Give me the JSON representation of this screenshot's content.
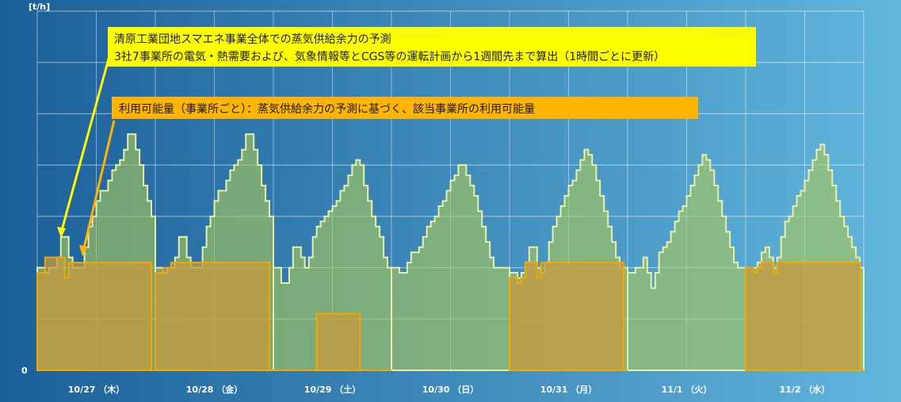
{
  "chart_data": {
    "type": "area",
    "y_unit_label": "[t/h]",
    "y_zero_label": "0",
    "x_tick_labels": [
      "10/27 （木）",
      "10/28 （金）",
      "10/29 （土）",
      "10/30 （日）",
      "10/31 （月）",
      "11/1 （火）",
      "11/2 （水）"
    ],
    "grid": true,
    "series": [
      {
        "name": "",
        "color": "#a8c85a",
        "values": [
          [
            2.0,
            2.0,
            1.9,
            2.0,
            2.0,
            2.2,
            2.6,
            2.6,
            2.2,
            2.0,
            2.0,
            2.0,
            2.4,
            2.8,
            3.0,
            3.3,
            3.5,
            3.5,
            3.7,
            3.9,
            4.0,
            4.1,
            4.3,
            4.6,
            4.6,
            4.3,
            4.0,
            3.6,
            3.3,
            3.0
          ],
          [
            2.0,
            2.0,
            1.9,
            2.0,
            2.0,
            2.2,
            2.6,
            2.6,
            2.2,
            2.0,
            2.0,
            2.0,
            2.4,
            2.8,
            3.0,
            3.3,
            3.5,
            3.5,
            3.7,
            3.9,
            4.0,
            4.1,
            4.3,
            4.6,
            4.6,
            4.3,
            4.0,
            3.6,
            3.3,
            3.0
          ],
          [
            2.0,
            2.0,
            1.7,
            1.7,
            2.0,
            2.4,
            2.4,
            2.2,
            2.0,
            2.2,
            2.6,
            2.8,
            2.9,
            3.0,
            3.1,
            3.2,
            3.3,
            3.5,
            3.6,
            3.8,
            4.0,
            4.1,
            4.0,
            3.6,
            3.3,
            3.0,
            2.8,
            2.6,
            2.2,
            2.0
          ],
          [
            2.0,
            2.0,
            1.9,
            1.9,
            2.1,
            2.3,
            2.3,
            2.4,
            2.6,
            2.8,
            2.9,
            3.0,
            3.2,
            3.3,
            3.5,
            3.7,
            3.8,
            4.0,
            4.0,
            3.8,
            3.6,
            3.4,
            3.1,
            2.8,
            2.5,
            2.2,
            2.0,
            2.0,
            2.0,
            2.0
          ],
          [
            1.9,
            1.9,
            1.8,
            1.9,
            2.1,
            2.4,
            2.4,
            2.0,
            1.9,
            2.1,
            2.5,
            2.8,
            3.0,
            3.2,
            3.4,
            3.6,
            3.7,
            3.9,
            4.1,
            4.3,
            4.2,
            4.0,
            3.7,
            3.4,
            3.1,
            2.8,
            2.5,
            2.2,
            2.0,
            2.0
          ],
          [
            1.9,
            1.9,
            2.0,
            2.0,
            2.2,
            1.9,
            1.6,
            1.9,
            2.3,
            2.4,
            2.5,
            2.7,
            2.9,
            3.1,
            3.2,
            3.4,
            3.6,
            3.8,
            4.0,
            4.2,
            4.1,
            3.9,
            3.6,
            3.3,
            3.0,
            2.7,
            2.4,
            2.1,
            2.0,
            2.0
          ],
          [
            2.0,
            2.0,
            2.0,
            2.1,
            2.3,
            2.4,
            2.2,
            2.0,
            2.2,
            2.6,
            2.9,
            3.0,
            3.2,
            3.4,
            3.5,
            3.7,
            3.9,
            4.1,
            4.3,
            4.4,
            4.2,
            3.9,
            3.6,
            3.3,
            3.0,
            2.8,
            2.6,
            2.4,
            2.2,
            2.0
          ]
        ]
      },
      {
        "name": "",
        "color": "#d4a23a",
        "values": [
          [
            1.9,
            1.9,
            2.2,
            2.2,
            2.2,
            2.2,
            2.2,
            1.8,
            2.1,
            2.1,
            2.1,
            2.1,
            2.1,
            2.1,
            2.1,
            2.1,
            2.1,
            2.1,
            2.1,
            2.1,
            2.1,
            2.1,
            2.1,
            2.1,
            2.1,
            2.1,
            2.1,
            2.1,
            2.1,
            0
          ],
          [
            1.9,
            1.9,
            2.0,
            2.0,
            2.1,
            2.1,
            2.1,
            2.1,
            2.1,
            2.1,
            2.1,
            2.1,
            2.1,
            2.1,
            2.1,
            2.1,
            2.1,
            2.1,
            2.1,
            2.1,
            2.1,
            2.1,
            2.1,
            2.1,
            2.1,
            2.1,
            2.1,
            2.1,
            2.1,
            0
          ],
          [
            0,
            0,
            0,
            0,
            0,
            0,
            0,
            0,
            0,
            0,
            0,
            1.1,
            1.1,
            1.1,
            1.1,
            1.1,
            1.1,
            1.1,
            1.1,
            1.1,
            1.1,
            1.1,
            0,
            0,
            0,
            0,
            0,
            0,
            0,
            0
          ],
          [
            0,
            0,
            0,
            0,
            0,
            0,
            0,
            0,
            0,
            0,
            0,
            0,
            0,
            0,
            0,
            0,
            0,
            0,
            0,
            0,
            0,
            0,
            0,
            0,
            0,
            0,
            0,
            0,
            0,
            0
          ],
          [
            1.8,
            1.8,
            1.7,
            1.8,
            2.1,
            2.1,
            2.1,
            1.8,
            2.1,
            2.1,
            2.1,
            2.1,
            2.1,
            2.1,
            2.1,
            2.1,
            2.1,
            2.1,
            2.1,
            2.1,
            2.1,
            2.1,
            2.1,
            2.1,
            2.1,
            2.1,
            2.1,
            2.1,
            2.1,
            0
          ],
          [
            0,
            0,
            0,
            0,
            0,
            0,
            0,
            0,
            0,
            0,
            0,
            0,
            0,
            0,
            0,
            0,
            0,
            0,
            0,
            0,
            0,
            0,
            0,
            0,
            0,
            0,
            0,
            0,
            0,
            0
          ],
          [
            2.0,
            2.0,
            1.9,
            2.0,
            2.1,
            2.1,
            2.1,
            1.9,
            2.1,
            2.1,
            2.1,
            2.1,
            2.1,
            2.1,
            2.1,
            2.1,
            2.1,
            2.1,
            2.1,
            2.1,
            2.1,
            2.1,
            2.1,
            2.1,
            2.1,
            2.1,
            2.1,
            2.1,
            2.1,
            0
          ]
        ]
      }
    ],
    "ylim": [
      0,
      7
    ],
    "annotations": {
      "callout_forecast_line1": "清原工業団地スマエネ事業全体での蒸気供給余力の予測",
      "callout_forecast_line2": "3社7事業所の電気・熱需要および、気象情報等とCGS等の運転計画から1週間先まで算出（1時間ごとに更新）",
      "callout_available": "利用可能量（事業所ごと）：蒸気供給余力の予測に基づく、該当事業所の利用可能量"
    },
    "colors": {
      "bg_left": "#1b5f99",
      "bg_right": "#62b6dc",
      "green_fill": "#a8c85a",
      "green_line": "#e8f0a8",
      "orange_fill": "#c89a3c",
      "orange_line": "#f2a800",
      "yellow_callout": "#ffff00",
      "orange_callout": "#ffb400"
    }
  }
}
